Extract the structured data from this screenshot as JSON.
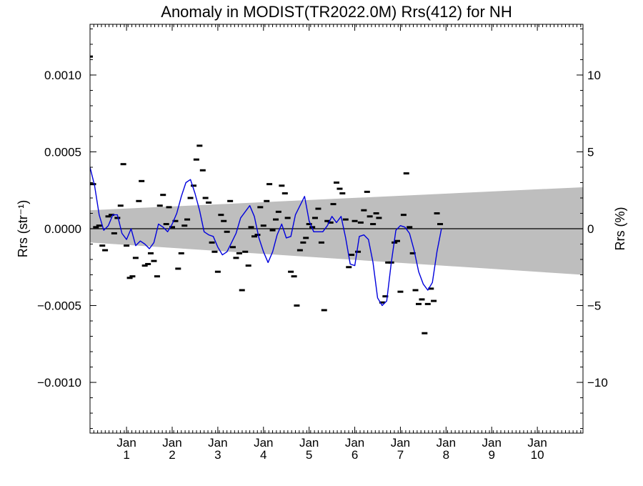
{
  "chart_data": {
    "type": "line",
    "title": "Anomaly in MODIST(TR2022.0M) Rrs(412) for NH",
    "ylabel_left": "Rrs (str⁻¹)",
    "ylabel_right": "Rrs (%)",
    "xlabel": "",
    "xlim": [
      0.2,
      11.0
    ],
    "ylim_left": [
      -0.00133,
      0.00133
    ],
    "ylim_right": [
      -13.3,
      13.3
    ],
    "left_ticks": [
      {
        "value": 0.001,
        "label": "0.0010"
      },
      {
        "value": 0.0005,
        "label": "0.0005"
      },
      {
        "value": 0.0,
        "label": "0.0000"
      },
      {
        "value": -0.0005,
        "label": "−0.0005"
      },
      {
        "value": -0.001,
        "label": "−0.0010"
      }
    ],
    "right_ticks": [
      {
        "value": 10,
        "label": "10"
      },
      {
        "value": 5,
        "label": "5"
      },
      {
        "value": 0,
        "label": "0"
      },
      {
        "value": -5,
        "label": "−5"
      },
      {
        "value": -10,
        "label": "−10"
      }
    ],
    "x_ticks": [
      {
        "value": 1,
        "month": "Jan",
        "year": "1"
      },
      {
        "value": 2,
        "month": "Jan",
        "year": "2"
      },
      {
        "value": 3,
        "month": "Jan",
        "year": "3"
      },
      {
        "value": 4,
        "month": "Jan",
        "year": "4"
      },
      {
        "value": 5,
        "month": "Jan",
        "year": "5"
      },
      {
        "value": 6,
        "month": "Jan",
        "year": "6"
      },
      {
        "value": 7,
        "month": "Jan",
        "year": "7"
      },
      {
        "value": 8,
        "month": "Jan",
        "year": "8"
      },
      {
        "value": 9,
        "month": "Jan",
        "year": "9"
      },
      {
        "value": 10,
        "month": "Jan",
        "year": "10"
      }
    ],
    "band": {
      "x": [
        0.2,
        11.0
      ],
      "upper": [
        0.00012,
        0.00027
      ],
      "lower": [
        -9e-05,
        -0.0003
      ],
      "color": "#bebebe"
    },
    "zero_line": 0.0,
    "series": [
      {
        "kind": "points",
        "color": "#000000",
        "points": [
          [
            0.2,
            0.00112
          ],
          [
            0.27,
            0.00029
          ],
          [
            0.33,
            1e-05
          ],
          [
            0.4,
            2e-05
          ],
          [
            0.47,
            -0.00011
          ],
          [
            0.53,
            -0.00014
          ],
          [
            0.6,
            8e-05
          ],
          [
            0.67,
            9e-05
          ],
          [
            0.73,
            -3e-05
          ],
          [
            0.8,
            7e-05
          ],
          [
            0.87,
            0.00015
          ],
          [
            0.93,
            0.00042
          ],
          [
            1.0,
            -0.00011
          ],
          [
            1.07,
            -0.00032
          ],
          [
            1.13,
            -0.00031
          ],
          [
            1.2,
            -0.00019
          ],
          [
            1.27,
            0.00018
          ],
          [
            1.33,
            0.00031
          ],
          [
            1.4,
            -0.00024
          ],
          [
            1.47,
            -0.00023
          ],
          [
            1.53,
            -0.00016
          ],
          [
            1.6,
            -0.00021
          ],
          [
            1.67,
            -0.00031
          ],
          [
            1.73,
            0.00015
          ],
          [
            1.8,
            0.00022
          ],
          [
            1.87,
            3e-05
          ],
          [
            1.93,
            0.00014
          ],
          [
            2.0,
            1e-05
          ],
          [
            2.07,
            5e-05
          ],
          [
            2.13,
            -0.00026
          ],
          [
            2.2,
            -0.00016
          ],
          [
            2.27,
            2e-05
          ],
          [
            2.33,
            6e-05
          ],
          [
            2.4,
            0.0002
          ],
          [
            2.47,
            0.00028
          ],
          [
            2.53,
            0.00045
          ],
          [
            2.6,
            0.00054
          ],
          [
            2.67,
            0.00038
          ],
          [
            2.73,
            0.0002
          ],
          [
            2.8,
            0.00017
          ],
          [
            2.87,
            -9e-05
          ],
          [
            2.93,
            -0.00015
          ],
          [
            3.0,
            -0.00028
          ],
          [
            3.07,
            9e-05
          ],
          [
            3.13,
            5e-05
          ],
          [
            3.2,
            -2e-05
          ],
          [
            3.27,
            0.00018
          ],
          [
            3.33,
            -0.00012
          ],
          [
            3.4,
            -0.00019
          ],
          [
            3.47,
            -0.00016
          ],
          [
            3.53,
            -0.0004
          ],
          [
            3.6,
            -0.00015
          ],
          [
            3.67,
            -0.00024
          ],
          [
            3.73,
            1e-05
          ],
          [
            3.8,
            -5e-05
          ],
          [
            3.87,
            -4e-05
          ],
          [
            3.93,
            0.00014
          ],
          [
            4.0,
            2e-05
          ],
          [
            4.07,
            0.00018
          ],
          [
            4.13,
            0.00029
          ],
          [
            4.2,
            -1e-05
          ],
          [
            4.27,
            6e-05
          ],
          [
            4.33,
            0.00011
          ],
          [
            4.4,
            0.00028
          ],
          [
            4.47,
            0.00023
          ],
          [
            4.53,
            7e-05
          ],
          [
            4.6,
            -0.00028
          ],
          [
            4.67,
            -0.00031
          ],
          [
            4.73,
            -0.0005
          ],
          [
            4.8,
            -0.00014
          ],
          [
            4.87,
            -9e-05
          ],
          [
            4.93,
            -6e-05
          ],
          [
            5.0,
            3e-05
          ],
          [
            5.07,
            1e-05
          ],
          [
            5.13,
            7e-05
          ],
          [
            5.2,
            0.00013
          ],
          [
            5.27,
            -9e-05
          ],
          [
            5.33,
            -0.00053
          ],
          [
            5.4,
            5e-05
          ],
          [
            5.47,
            4e-05
          ],
          [
            5.53,
            0.00016
          ],
          [
            5.6,
            0.0003
          ],
          [
            5.67,
            0.00026
          ],
          [
            5.73,
            0.00023
          ],
          [
            5.8,
            6e-05
          ],
          [
            5.87,
            -0.00025
          ],
          [
            5.93,
            -0.00017
          ],
          [
            6.0,
            5e-05
          ],
          [
            6.07,
            -0.00015
          ],
          [
            6.13,
            4e-05
          ],
          [
            6.2,
            0.00012
          ],
          [
            6.27,
            0.00024
          ],
          [
            6.33,
            8e-05
          ],
          [
            6.4,
            3e-05
          ],
          [
            6.47,
            0.0001
          ],
          [
            6.53,
            7e-05
          ],
          [
            6.6,
            -0.00048
          ],
          [
            6.67,
            -0.00044
          ],
          [
            6.73,
            -0.00022
          ],
          [
            6.8,
            -0.00022
          ],
          [
            6.87,
            -9e-05
          ],
          [
            6.93,
            -8e-05
          ],
          [
            7.0,
            -0.00041
          ],
          [
            7.07,
            9e-05
          ],
          [
            7.13,
            0.00036
          ],
          [
            7.2,
            1e-05
          ],
          [
            7.27,
            -0.00016
          ],
          [
            7.33,
            -0.0004
          ],
          [
            7.4,
            -0.00049
          ],
          [
            7.47,
            -0.00046
          ],
          [
            7.53,
            -0.00068
          ],
          [
            7.6,
            -0.00049
          ],
          [
            7.67,
            -0.00039
          ],
          [
            7.73,
            -0.00047
          ],
          [
            7.8,
            0.0001
          ],
          [
            7.87,
            3e-05
          ]
        ]
      },
      {
        "kind": "line",
        "color": "#0000dd",
        "points": [
          [
            0.2,
            0.0004
          ],
          [
            0.3,
            0.00028
          ],
          [
            0.4,
            9e-05
          ],
          [
            0.5,
            -1e-05
          ],
          [
            0.6,
            2e-05
          ],
          [
            0.7,
            9e-05
          ],
          [
            0.8,
            9e-05
          ],
          [
            0.9,
            -3e-05
          ],
          [
            1.0,
            -7e-05
          ],
          [
            1.1,
            0.0
          ],
          [
            1.2,
            -0.00011
          ],
          [
            1.3,
            -8e-05
          ],
          [
            1.4,
            -0.0001
          ],
          [
            1.5,
            -0.00013
          ],
          [
            1.6,
            -9e-05
          ],
          [
            1.7,
            3e-05
          ],
          [
            1.8,
            1e-05
          ],
          [
            1.9,
            -2e-05
          ],
          [
            2.0,
            3e-05
          ],
          [
            2.1,
            0.0001
          ],
          [
            2.2,
            0.00021
          ],
          [
            2.3,
            0.0003
          ],
          [
            2.4,
            0.00032
          ],
          [
            2.5,
            0.00023
          ],
          [
            2.6,
            0.00012
          ],
          [
            2.7,
            -2e-05
          ],
          [
            2.8,
            -4e-05
          ],
          [
            2.9,
            -5e-05
          ],
          [
            3.0,
            -0.00012
          ],
          [
            3.1,
            -0.00017
          ],
          [
            3.2,
            -0.00015
          ],
          [
            3.3,
            -9e-05
          ],
          [
            3.4,
            -3e-05
          ],
          [
            3.5,
            7e-05
          ],
          [
            3.6,
            0.00011
          ],
          [
            3.7,
            0.00015
          ],
          [
            3.8,
            8e-05
          ],
          [
            3.9,
            -6e-05
          ],
          [
            4.0,
            -0.00015
          ],
          [
            4.1,
            -0.00022
          ],
          [
            4.2,
            -0.00015
          ],
          [
            4.3,
            -4e-05
          ],
          [
            4.4,
            3e-05
          ],
          [
            4.5,
            -6e-05
          ],
          [
            4.6,
            -5e-05
          ],
          [
            4.7,
            9e-05
          ],
          [
            4.8,
            0.00015
          ],
          [
            4.9,
            0.00021
          ],
          [
            5.0,
            5e-05
          ],
          [
            5.1,
            -2e-05
          ],
          [
            5.2,
            -2e-05
          ],
          [
            5.3,
            -2e-05
          ],
          [
            5.4,
            2e-05
          ],
          [
            5.5,
            8e-05
          ],
          [
            5.6,
            4e-05
          ],
          [
            5.7,
            8e-05
          ],
          [
            5.8,
            -6e-05
          ],
          [
            5.9,
            -0.00023
          ],
          [
            6.0,
            -0.00024
          ],
          [
            6.1,
            -5e-05
          ],
          [
            6.2,
            -4e-05
          ],
          [
            6.3,
            -7e-05
          ],
          [
            6.4,
            -0.00022
          ],
          [
            6.5,
            -0.00045
          ],
          [
            6.6,
            -0.0005
          ],
          [
            6.7,
            -0.00047
          ],
          [
            6.8,
            -0.00022
          ],
          [
            6.9,
            -1e-05
          ],
          [
            7.0,
            2e-05
          ],
          [
            7.1,
            1e-05
          ],
          [
            7.2,
            -3e-05
          ],
          [
            7.3,
            -0.00014
          ],
          [
            7.4,
            -0.00028
          ],
          [
            7.5,
            -0.00036
          ],
          [
            7.6,
            -0.0004
          ],
          [
            7.7,
            -0.00035
          ],
          [
            7.8,
            -0.00015
          ],
          [
            7.9,
            0.0
          ]
        ]
      }
    ],
    "grid": false,
    "legend": "none"
  }
}
